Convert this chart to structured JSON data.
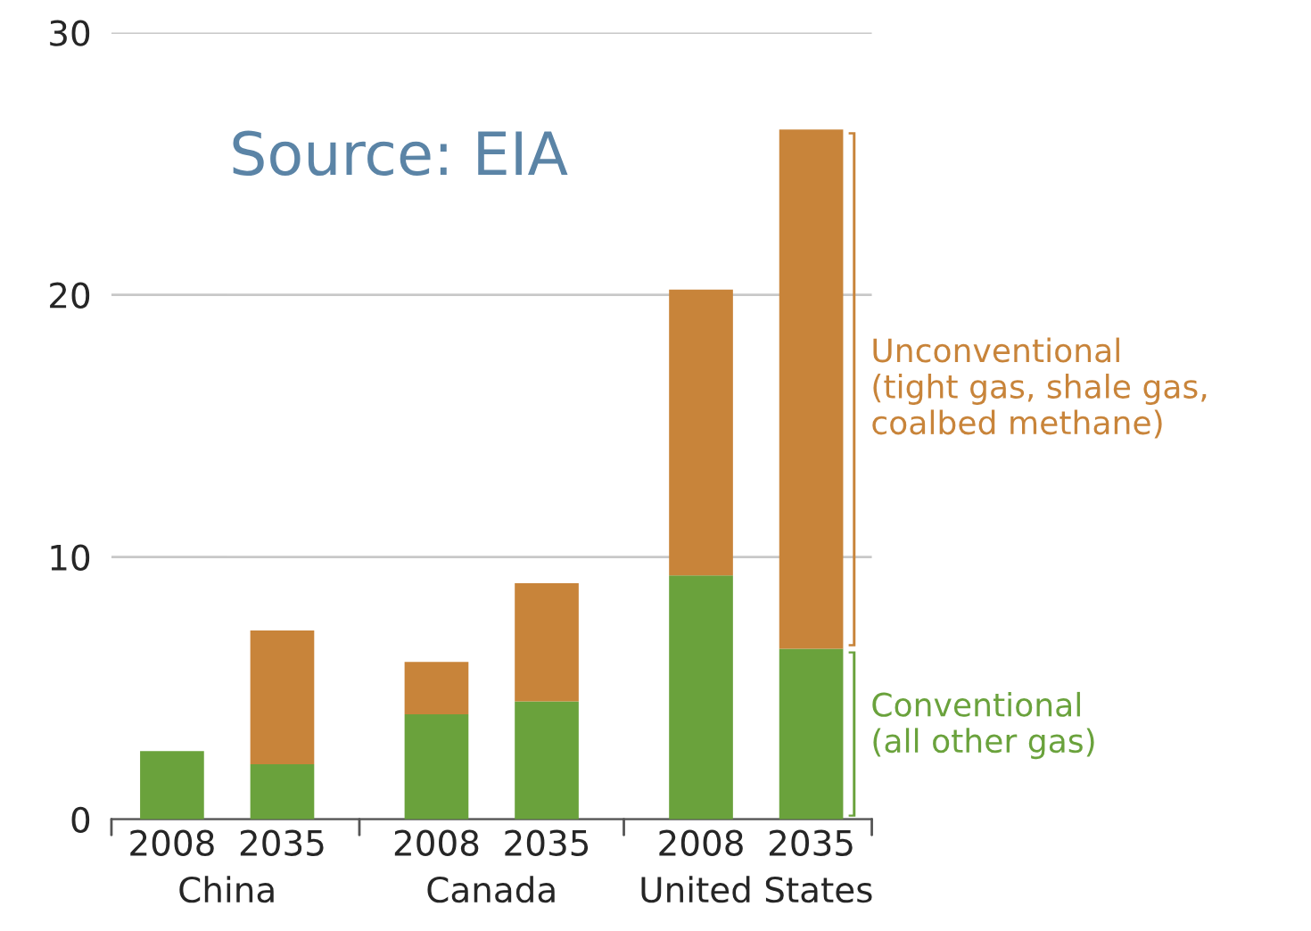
{
  "chart_data": {
    "type": "bar",
    "stacked": true,
    "categories": [
      "2008",
      "2035",
      "2008",
      "2035",
      "2008",
      "2035"
    ],
    "series": [
      {
        "name": "Conventional\n(all other gas)",
        "color": "#6aa23c",
        "values": [
          2.6,
          2.1,
          4.0,
          4.5,
          9.3,
          6.5
        ]
      },
      {
        "name": "Unconventional\n(tight gas, shale gas,\ncoalbed methane)",
        "color": "#c8843a",
        "values": [
          0,
          5.1,
          2.0,
          4.5,
          10.9,
          19.8
        ]
      }
    ],
    "ylim": [
      0,
      30
    ],
    "yticks": [
      0,
      10,
      20,
      30
    ],
    "grid": "y",
    "legend": "right",
    "annotations": [
      "China",
      "Canada",
      "United States",
      "Source: EIA"
    ]
  }
}
